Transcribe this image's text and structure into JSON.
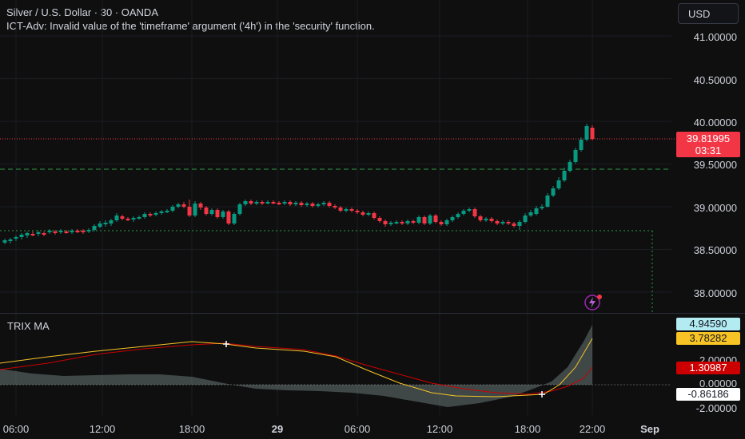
{
  "header": {
    "title": "Silver / U.S. Dollar · 30 · OANDA",
    "error": "ICT-Adv: Invalid value of the 'timeframe' argument ('4h') in the 'security' function."
  },
  "currency_button": "USD",
  "price_axis": {
    "ticks": [
      "41.00000",
      "40.50000",
      "40.00000",
      "39.50000",
      "39.00000",
      "38.50000",
      "38.00000"
    ],
    "current_price": "39.81995",
    "countdown": "03:31"
  },
  "indicator": {
    "name": "TRIX MA",
    "ticks": [
      "2.00000",
      "0.00000",
      "-2.00000"
    ],
    "values": [
      {
        "label": "4.94590",
        "bg": "#b2ebf2",
        "fg": "#131722"
      },
      {
        "label": "3.78282",
        "bg": "#f7c325",
        "fg": "#131722"
      },
      {
        "label": "1.30987",
        "bg": "#cc0000",
        "fg": "#ffffff"
      },
      {
        "label": "-0.86186",
        "bg": "#ffffff",
        "fg": "#131722"
      }
    ]
  },
  "time_axis": {
    "labels": [
      "06:00",
      "12:00",
      "18:00",
      "29",
      "06:00",
      "12:00",
      "18:00",
      "22:00",
      "Sep"
    ]
  },
  "colors": {
    "up": "#089981",
    "down": "#f23645",
    "background": "#0f0f10"
  },
  "icons": {
    "alert": "lightning-alert-icon"
  }
}
